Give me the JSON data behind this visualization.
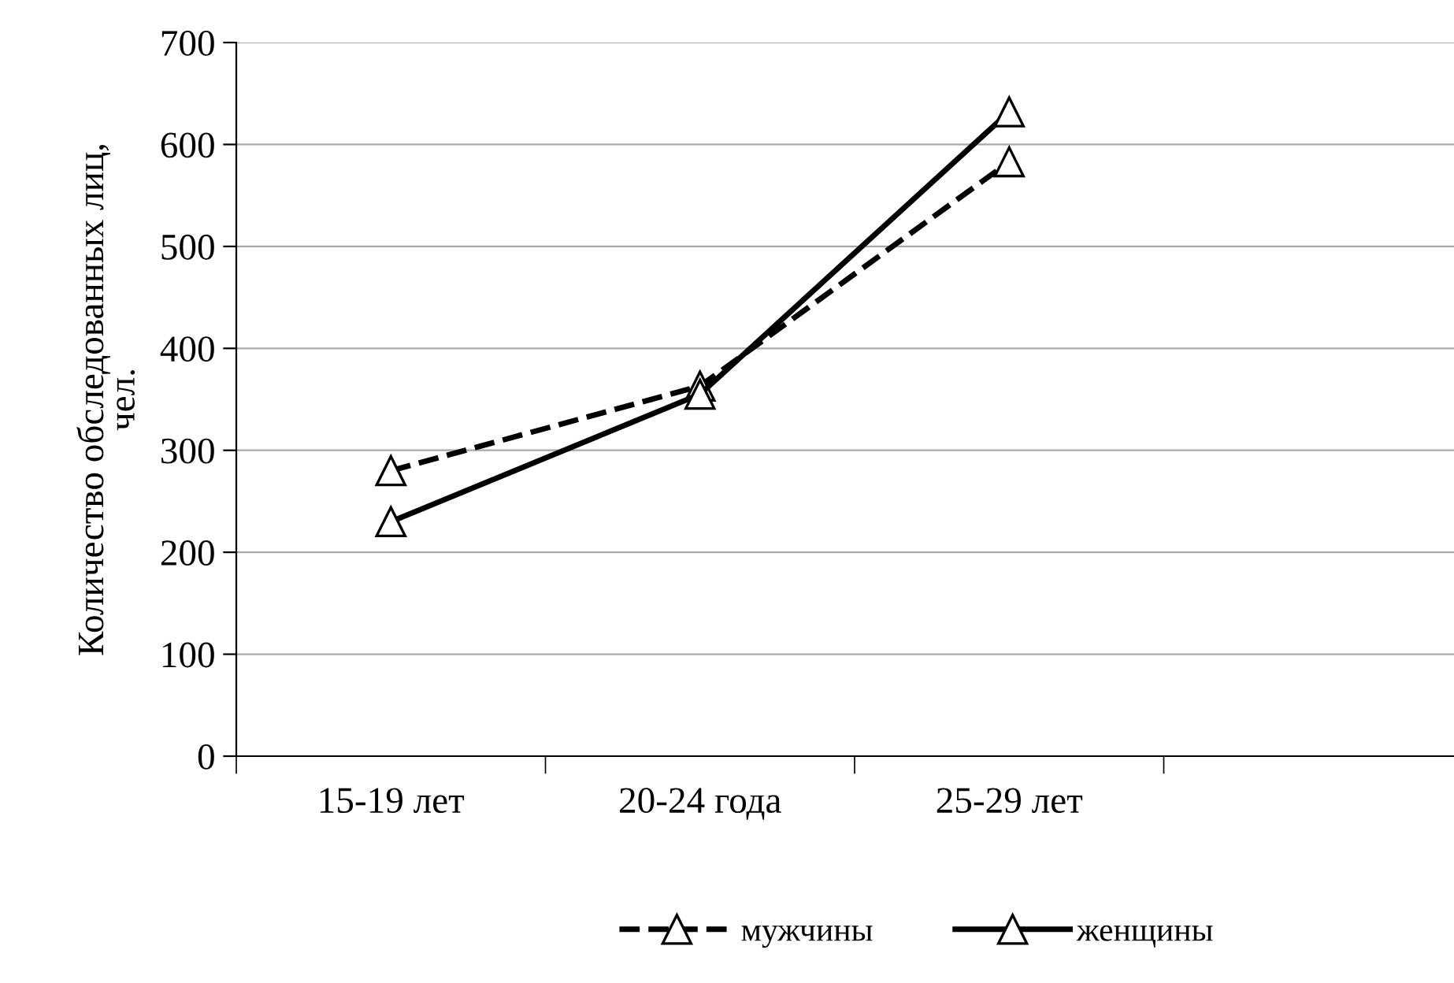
{
  "chart_data": {
    "type": "line",
    "ylabel": "Количество обследованных лиц, чел.",
    "categories": [
      "15-19 лет",
      "20-24 года",
      "25-29 лет",
      null
    ],
    "series": [
      {
        "name": "мужчины",
        "color": "#000000",
        "line_style": "dashed",
        "values": [
          280,
          363,
          583,
          null
        ]
      },
      {
        "name": "женщины",
        "color": "#000000",
        "line_style": "solid",
        "values": [
          230,
          355,
          632,
          null
        ]
      }
    ],
    "ylim": [
      0,
      700
    ],
    "yticks": [
      0,
      100,
      200,
      300,
      400,
      500,
      600,
      700
    ],
    "grid": "y",
    "legend": "bottom",
    "marker": "triangle"
  }
}
